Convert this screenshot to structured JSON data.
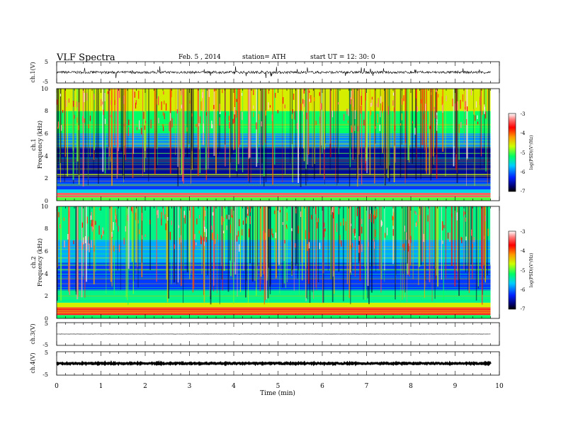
{
  "header": {
    "title": "VLF  Spectra",
    "date": "Feb. 5  , 2014",
    "station": "station= ATH",
    "start": "start  UT =   12: 30: 0"
  },
  "chart_data": [
    {
      "type": "line",
      "name": "ch1-waveform",
      "ylabel": "ch.1(V)",
      "ylim": [
        -5,
        5
      ],
      "yticks": [
        "5",
        "-5"
      ],
      "xlim": [
        0,
        10
      ],
      "data_extent_min": 9.8,
      "baseline": 0,
      "amplitude": 0.6
    },
    {
      "type": "heatmap",
      "name": "ch1-spectrogram",
      "ylabel": "ch.1\nFrequency  (kHz)",
      "ylim": [
        0,
        10
      ],
      "yticks": [
        "0",
        "2",
        "4",
        "6",
        "8",
        "10"
      ],
      "xlim": [
        0,
        10
      ],
      "data_extent_min": 9.8,
      "colorbar": {
        "label": "log(PSD)(V²/Hz)",
        "range": [
          -7,
          -3
        ],
        "ticks": [
          "-3",
          "-4",
          "-5",
          "-6",
          "-7"
        ]
      },
      "bands": [
        {
          "from": 0.0,
          "to": 0.3,
          "level": -5.0
        },
        {
          "from": 0.3,
          "to": 0.7,
          "level": -3.4
        },
        {
          "from": 0.7,
          "to": 1.0,
          "level": -5.6
        },
        {
          "from": 1.0,
          "to": 2.0,
          "level": -6.2
        },
        {
          "from": 2.0,
          "to": 4.8,
          "level": -6.6
        },
        {
          "from": 4.8,
          "to": 6.0,
          "level": -5.9
        },
        {
          "from": 6.0,
          "to": 8.0,
          "level": -5.2
        },
        {
          "from": 8.0,
          "to": 10.0,
          "level": -4.6
        }
      ]
    },
    {
      "type": "heatmap",
      "name": "ch2-spectrogram",
      "ylabel": "ch.2\nFrequency  (kHz)",
      "ylim": [
        0,
        10
      ],
      "yticks": [
        "0",
        "2",
        "4",
        "6",
        "8",
        "10"
      ],
      "xlim": [
        0,
        10
      ],
      "data_extent_min": 9.8,
      "colorbar": {
        "label": "log(PSD)(V²/Hz)",
        "range": [
          -7,
          -3
        ],
        "ticks": [
          "-3",
          "-4",
          "-5",
          "-6",
          "-7"
        ]
      },
      "bands": [
        {
          "from": 0.0,
          "to": 0.3,
          "level": -5.2
        },
        {
          "from": 0.3,
          "to": 1.0,
          "level": -3.6
        },
        {
          "from": 1.0,
          "to": 1.4,
          "level": -4.6
        },
        {
          "from": 1.4,
          "to": 2.5,
          "level": -5.3
        },
        {
          "from": 2.5,
          "to": 5.0,
          "level": -6.2
        },
        {
          "from": 5.0,
          "to": 7.0,
          "level": -5.8
        },
        {
          "from": 7.0,
          "to": 10.0,
          "level": -5.3
        }
      ]
    },
    {
      "type": "line",
      "name": "ch3-waveform",
      "ylabel": "ch.3(V)",
      "ylim": [
        -5,
        5
      ],
      "yticks": [
        "5",
        "-5"
      ],
      "xlim": [
        0,
        10
      ],
      "data_extent_min": 9.8,
      "baseline": 0,
      "amplitude": 0.05
    },
    {
      "type": "line",
      "name": "ch4-waveform",
      "ylabel": "ch.4(V)",
      "ylim": [
        -5,
        5
      ],
      "yticks": [
        "5",
        "-5"
      ],
      "xlim": [
        0,
        10
      ],
      "data_extent_min": 9.8,
      "baseline": 0,
      "amplitude": 0.25
    }
  ],
  "x_axis": {
    "label": "Time  (min)",
    "ticks": [
      "0",
      "1",
      "2",
      "3",
      "4",
      "5",
      "6",
      "7",
      "8",
      "9",
      "10"
    ]
  }
}
